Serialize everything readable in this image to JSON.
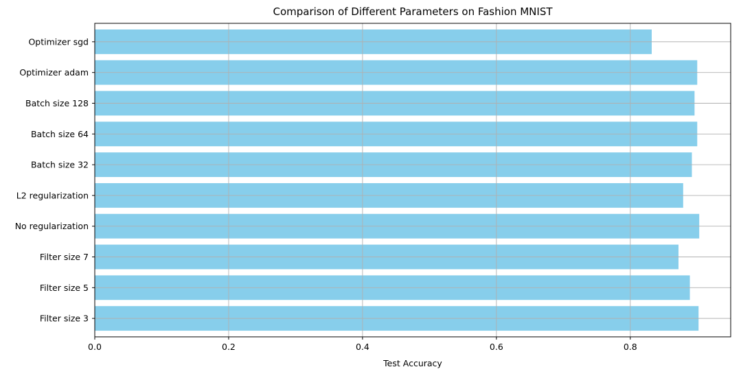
{
  "chart_data": {
    "type": "bar",
    "orientation": "horizontal",
    "title": "Comparison of Different Parameters on Fashion MNIST",
    "xlabel": "Test Accuracy",
    "ylabel": "",
    "categories": [
      "Filter size 3",
      "Filter size 5",
      "Filter size 7",
      "No regularization",
      "L2 regularization",
      "Batch size 32",
      "Batch size 64",
      "Batch size 128",
      "Optimizer adam",
      "Optimizer sgd"
    ],
    "values": [
      0.902,
      0.889,
      0.872,
      0.903,
      0.879,
      0.892,
      0.9,
      0.896,
      0.9,
      0.832
    ],
    "xlim": [
      0,
      0.95
    ],
    "xticks": [
      0.0,
      0.2,
      0.4,
      0.6,
      0.8
    ],
    "xtick_labels": [
      "0.0",
      "0.2",
      "0.4",
      "0.6",
      "0.8"
    ],
    "grid": true,
    "bar_color": "#87ceeb",
    "grid_color": "#b0b0b0"
  }
}
